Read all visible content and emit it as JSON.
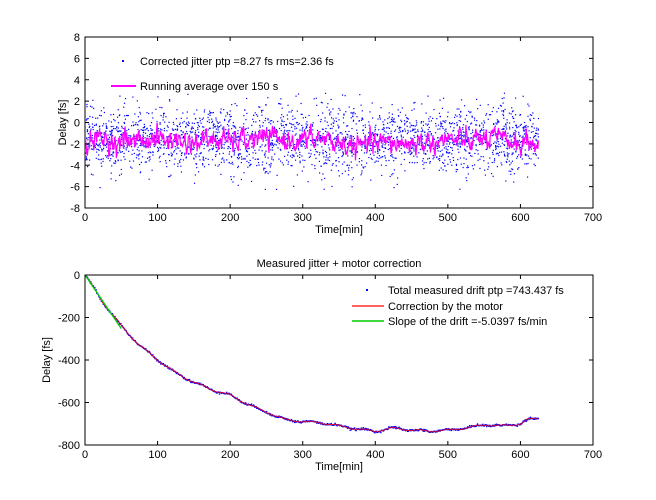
{
  "chart_data": [
    {
      "type": "scatter",
      "title": "",
      "xlabel": "Time[min]",
      "ylabel": "Delay [fs]",
      "xlim": [
        0,
        700
      ],
      "ylim": [
        -8,
        8
      ],
      "xticks": [
        "0",
        "100",
        "200",
        "300",
        "400",
        "500",
        "600",
        "700"
      ],
      "yticks": [
        "8",
        "6",
        "4",
        "2",
        "0",
        "-2",
        "-4",
        "-6",
        "-8"
      ],
      "grid": false,
      "legend_position": "top-left",
      "series": [
        {
          "name": "Corrected jitter ptp =8.27 fs rms=2.36 fs",
          "style": "dots",
          "color": "#0000ff",
          "x_range": [
            0,
            625
          ],
          "center": -1.6,
          "spread": 2.36
        },
        {
          "name": "Running average over 150 s",
          "style": "line",
          "color": "#ff00ff",
          "x": [
            0,
            25,
            50,
            75,
            100,
            125,
            150,
            175,
            200,
            225,
            250,
            275,
            300,
            325,
            350,
            375,
            400,
            425,
            450,
            475,
            500,
            525,
            550,
            575,
            600,
            625
          ],
          "values": [
            -1.7,
            -1.6,
            -1.8,
            -1.6,
            -1.5,
            -1.7,
            -1.9,
            -1.6,
            -1.8,
            -1.6,
            -1.5,
            -1.6,
            -1.7,
            -1.5,
            -2.0,
            -2.3,
            -2.0,
            -1.9,
            -2.0,
            -1.8,
            -1.6,
            -1.8,
            -1.5,
            -1.7,
            -1.9,
            -2.0
          ]
        }
      ]
    },
    {
      "type": "line",
      "title": "Measured jitter + motor correction",
      "xlabel": "Time[min]",
      "ylabel": "Delay [fs]",
      "xlim": [
        0,
        700
      ],
      "ylim": [
        -800,
        0
      ],
      "xticks": [
        "0",
        "100",
        "200",
        "300",
        "400",
        "500",
        "600",
        "700"
      ],
      "yticks": [
        "0",
        "-200",
        "-400",
        "-600",
        "-800"
      ],
      "grid": false,
      "legend_position": "top-right",
      "x": [
        0,
        10,
        25,
        50,
        75,
        100,
        125,
        150,
        175,
        200,
        225,
        250,
        275,
        300,
        325,
        350,
        375,
        400,
        425,
        450,
        475,
        500,
        525,
        550,
        575,
        600,
        610,
        625
      ],
      "series": [
        {
          "name": "Total measured drift ptp =743.437 fs",
          "style": "dots",
          "color": "#0000ff",
          "values": [
            0,
            -50,
            -130,
            -240,
            -330,
            -400,
            -460,
            -505,
            -540,
            -565,
            -610,
            -645,
            -680,
            -690,
            -695,
            -710,
            -725,
            -735,
            -720,
            -730,
            -735,
            -730,
            -720,
            -705,
            -710,
            -700,
            -680,
            -675
          ]
        },
        {
          "name": "Correction by the motor",
          "style": "line",
          "color": "#ff0000",
          "values": [
            0,
            -50,
            -130,
            -240,
            -330,
            -400,
            -460,
            -505,
            -540,
            -565,
            -610,
            -645,
            -680,
            -690,
            -695,
            -710,
            -725,
            -735,
            -720,
            -730,
            -735,
            -730,
            -720,
            -705,
            -710,
            -700,
            -680,
            -675
          ]
        },
        {
          "name": "Slope of the drift =-5.0397 fs/min",
          "style": "line",
          "color": "#00cc00",
          "x": [
            0,
            50
          ],
          "values": [
            0,
            -252
          ]
        }
      ]
    }
  ]
}
